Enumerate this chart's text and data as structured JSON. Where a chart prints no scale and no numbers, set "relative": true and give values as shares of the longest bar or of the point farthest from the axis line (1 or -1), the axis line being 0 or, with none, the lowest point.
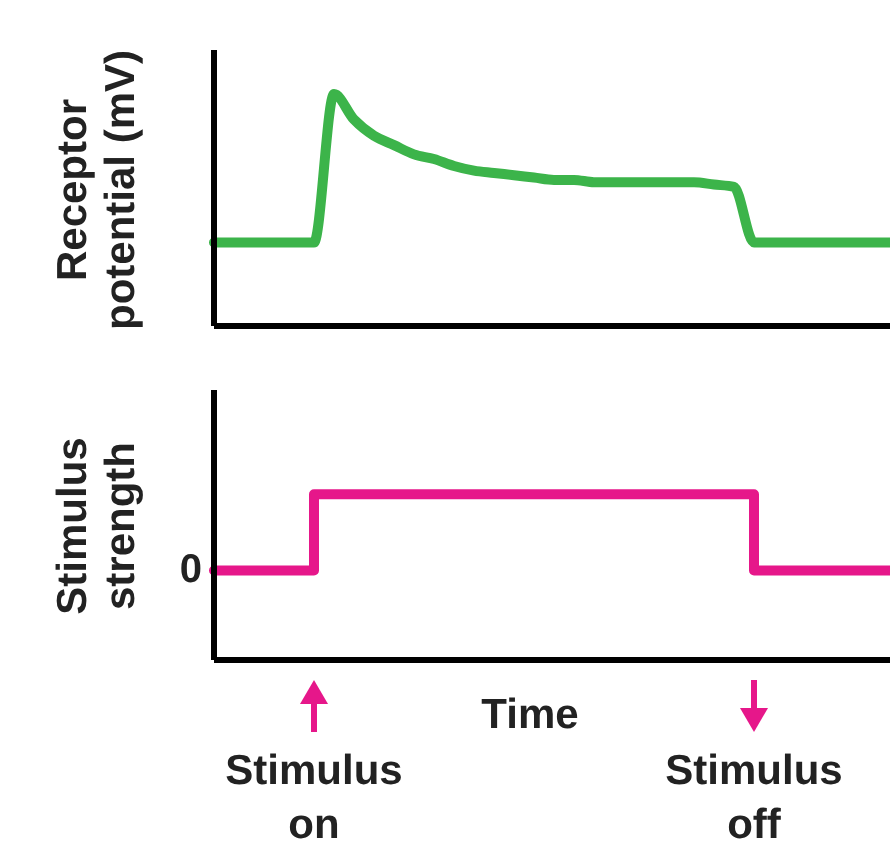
{
  "chart_data": [
    {
      "type": "line",
      "relative": true,
      "ylabel": "Receptor potential (mV)",
      "categories": [
        null,
        null,
        null,
        null,
        null,
        null,
        null,
        null,
        null,
        null,
        null,
        null,
        null,
        null,
        null,
        null,
        null,
        null,
        null,
        null,
        null,
        null,
        null,
        null,
        null,
        null,
        null,
        null,
        null,
        null,
        null,
        null,
        null,
        null,
        null
      ],
      "series": [
        {
          "color": "#3cb44a",
          "values": [
            0.36,
            0.36,
            0.36,
            0.36,
            0.36,
            0.36,
            1.0,
            0.89,
            0.82,
            0.78,
            0.74,
            0.72,
            0.69,
            0.67,
            0.66,
            0.65,
            0.64,
            0.63,
            0.63,
            0.62,
            0.62,
            0.62,
            0.62,
            0.62,
            0.62,
            0.61,
            0.6,
            0.36,
            0.36,
            0.36,
            0.36,
            0.36,
            0.36,
            0.36,
            0.36
          ]
        }
      ]
    },
    {
      "type": "step",
      "relative": true,
      "ylabel": "Stimulus strength",
      "xlabel": "Time",
      "categories": [
        null,
        null,
        null,
        null,
        null,
        null,
        null,
        null,
        null,
        null,
        null,
        null,
        null,
        null,
        null,
        null,
        null,
        null,
        null,
        null,
        null,
        null,
        null,
        null,
        null,
        null,
        null,
        null,
        null,
        null,
        null,
        null,
        null,
        null,
        null
      ],
      "series": [
        {
          "color": "#e6178a",
          "values": [
            0.54,
            0.54,
            0.54,
            0.54,
            0.54,
            1,
            1,
            1,
            1,
            1,
            1,
            1,
            1,
            1,
            1,
            1,
            1,
            1,
            1,
            1,
            1,
            1,
            1,
            1,
            1,
            1,
            1,
            0.54,
            0.54,
            0.54,
            0.54,
            0.54,
            0.54,
            0.54,
            0.54
          ]
        }
      ],
      "annotations": [
        "0",
        "Stimulus on",
        "Stimulus off"
      ]
    }
  ]
}
